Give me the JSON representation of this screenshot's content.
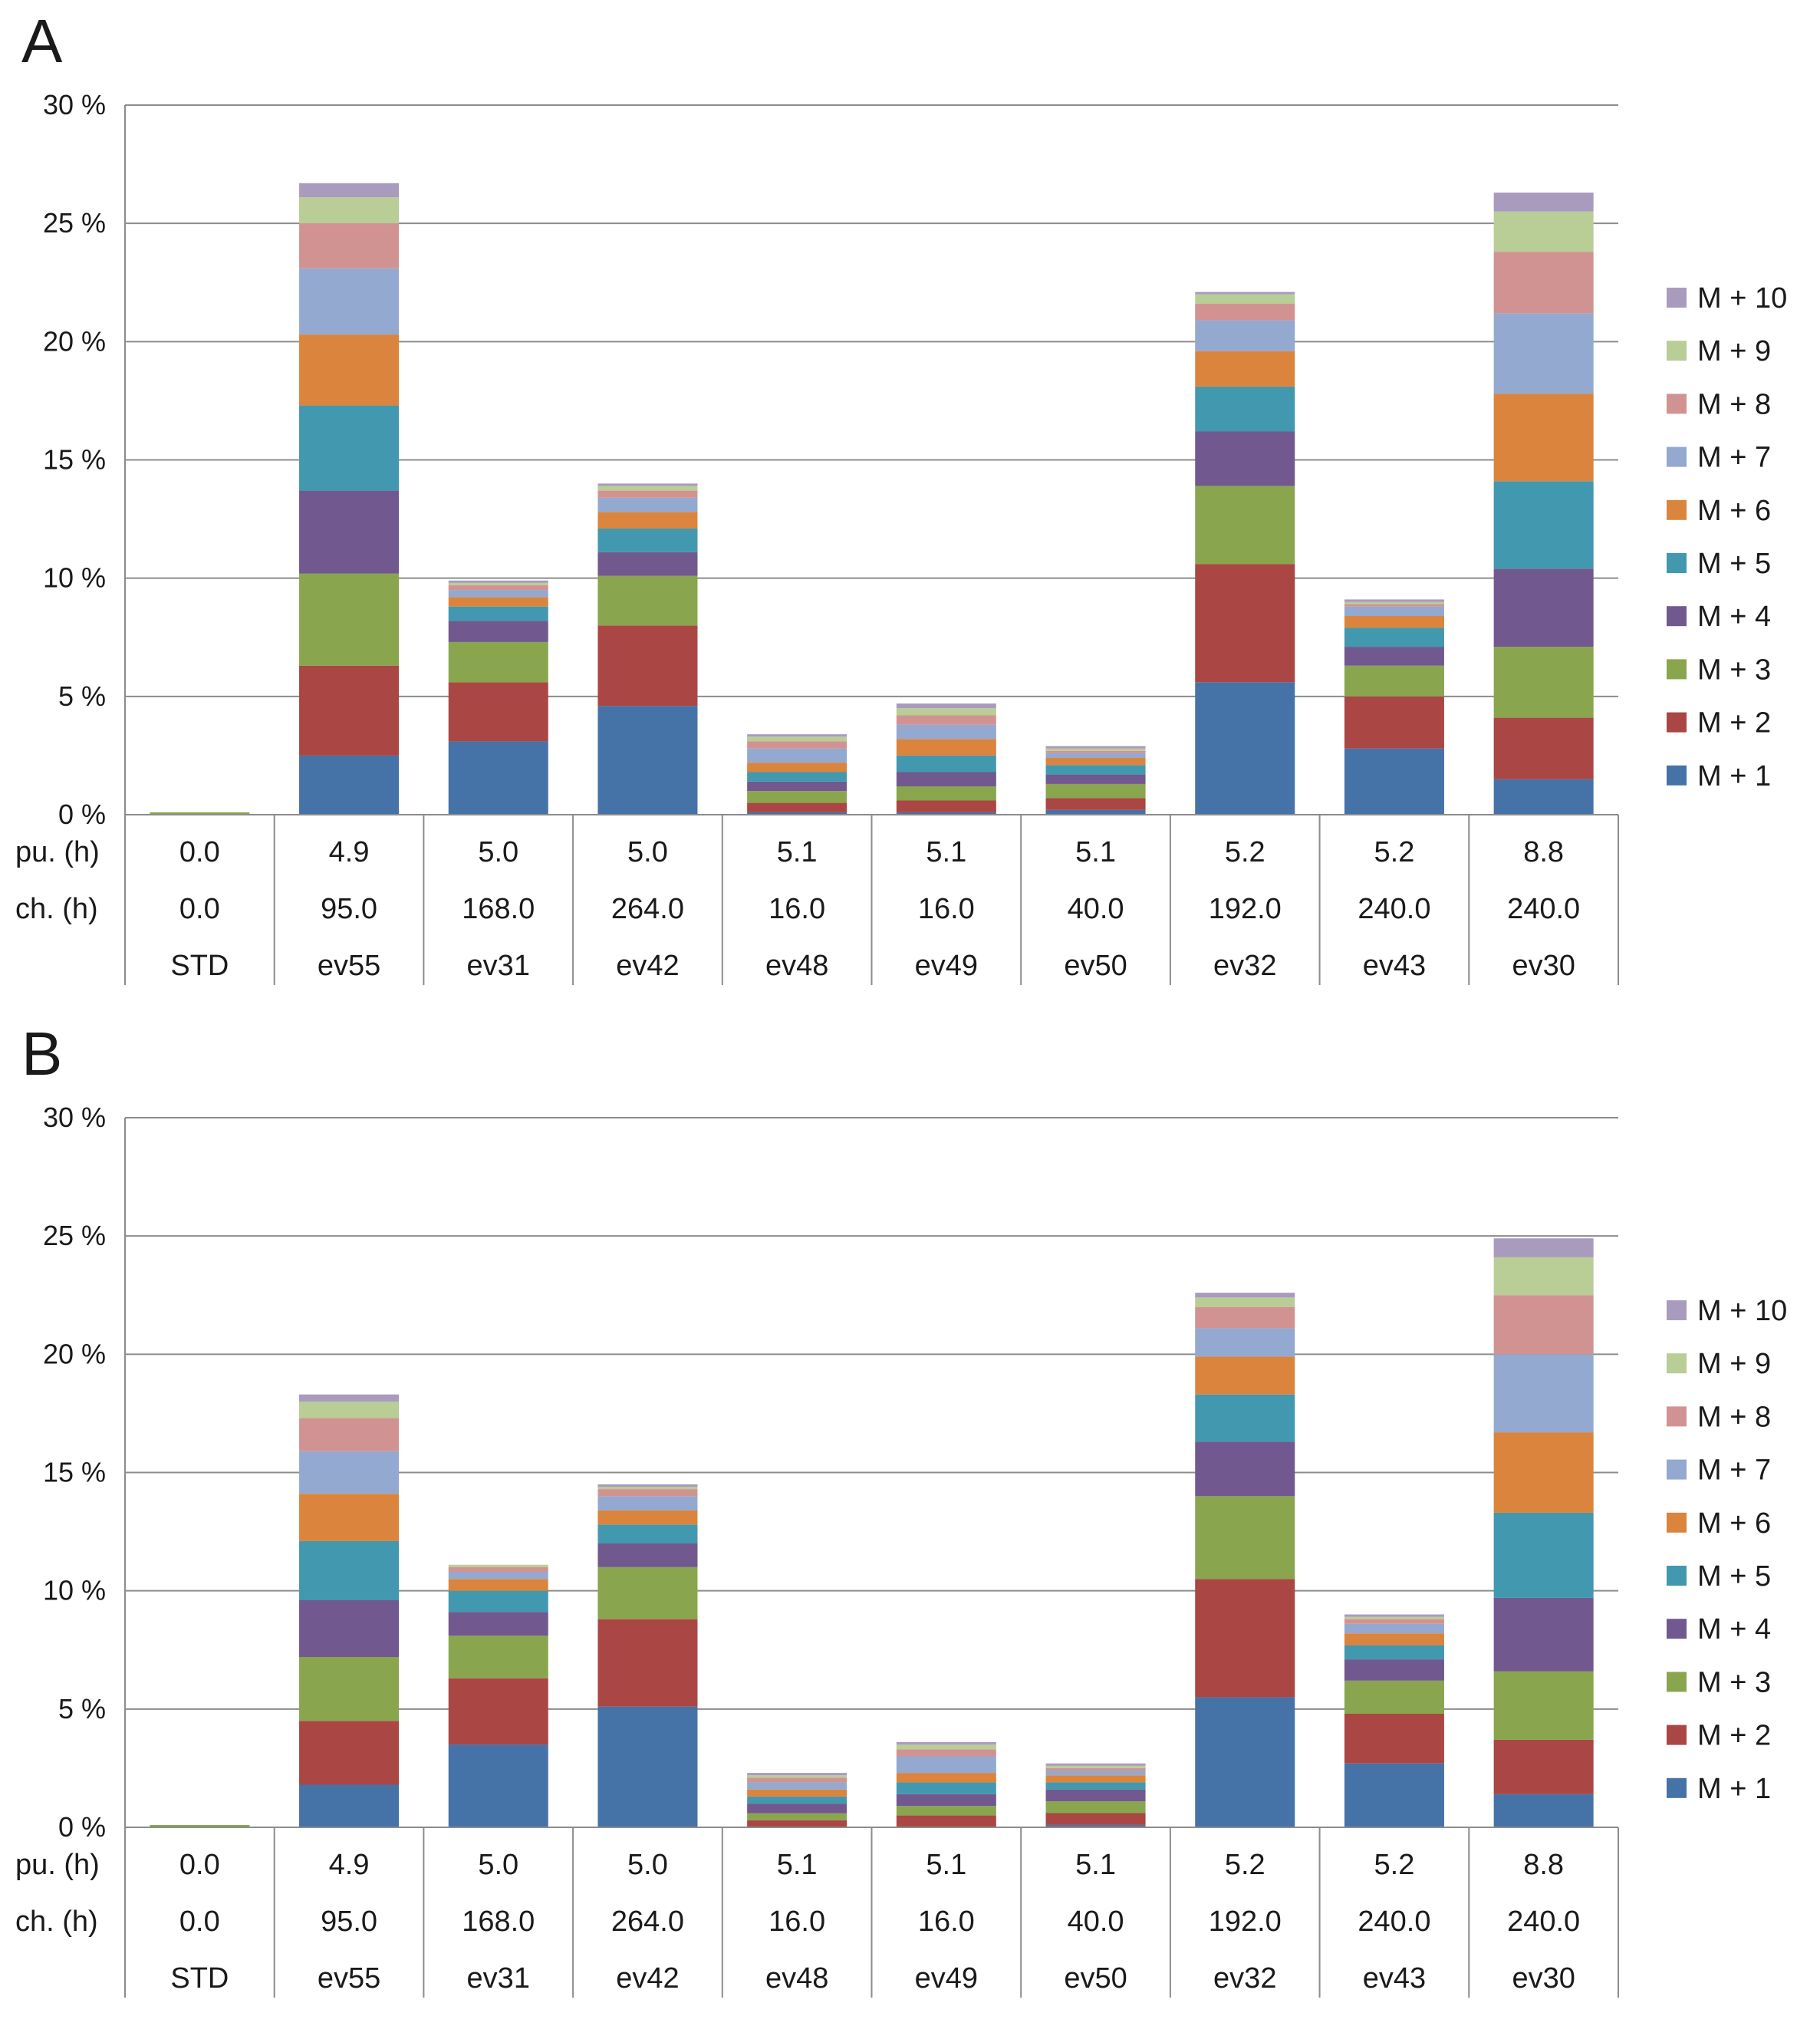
{
  "colors": {
    "M + 1": "#4572a7",
    "M + 2": "#aa4643",
    "M + 3": "#89a54e",
    "M + 4": "#71588f",
    "M + 5": "#4198af",
    "M + 6": "#db843d",
    "M + 7": "#93a9cf",
    "M + 8": "#d19392",
    "M + 9": "#b9cd96",
    "M + 10": "#a99bbd"
  },
  "chart_data": [
    {
      "panel": "A",
      "type": "bar",
      "stacked": true,
      "ylim": [
        0,
        30
      ],
      "yticks": [
        "0 %",
        "5 %",
        "10 %",
        "15 %",
        "20 %",
        "25 %",
        "30 %"
      ],
      "table_rows": [
        {
          "label": "pu. (h)",
          "values": [
            "0.0",
            "4.9",
            "5.0",
            "5.0",
            "5.1",
            "5.1",
            "5.1",
            "5.2",
            "5.2",
            "8.8"
          ]
        },
        {
          "label": "ch. (h)",
          "values": [
            "0.0",
            "95.0",
            "168.0",
            "264.0",
            "16.0",
            "16.0",
            "40.0",
            "192.0",
            "240.0",
            "240.0"
          ]
        },
        {
          "label": "",
          "values": [
            "STD",
            "ev55",
            "ev31",
            "ev42",
            "ev48",
            "ev49",
            "ev50",
            "ev32",
            "ev43",
            "ev30"
          ]
        }
      ],
      "categories": [
        "STD",
        "ev55",
        "ev31",
        "ev42",
        "ev48",
        "ev49",
        "ev50",
        "ev32",
        "ev43",
        "ev30"
      ],
      "legend": [
        "M + 10",
        "M + 9",
        "M + 8",
        "M + 7",
        "M + 6",
        "M + 5",
        "M + 4",
        "M + 3",
        "M + 2",
        "M + 1"
      ],
      "series": [
        {
          "name": "M + 1",
          "values": [
            0.0,
            2.5,
            3.1,
            4.6,
            0.1,
            0.1,
            0.2,
            5.6,
            2.8,
            1.5
          ]
        },
        {
          "name": "M + 2",
          "values": [
            0.0,
            3.8,
            2.5,
            3.4,
            0.4,
            0.5,
            0.5,
            5.0,
            2.2,
            2.6
          ]
        },
        {
          "name": "M + 3",
          "values": [
            0.1,
            3.9,
            1.7,
            2.1,
            0.5,
            0.6,
            0.6,
            3.3,
            1.3,
            3.0
          ]
        },
        {
          "name": "M + 4",
          "values": [
            0.0,
            3.5,
            0.9,
            1.0,
            0.4,
            0.6,
            0.4,
            2.3,
            0.8,
            3.3
          ]
        },
        {
          "name": "M + 5",
          "values": [
            0.0,
            3.6,
            0.6,
            1.0,
            0.4,
            0.7,
            0.4,
            1.9,
            0.8,
            3.7
          ]
        },
        {
          "name": "M + 6",
          "values": [
            0.0,
            3.0,
            0.4,
            0.7,
            0.4,
            0.7,
            0.3,
            1.5,
            0.5,
            3.7
          ]
        },
        {
          "name": "M + 7",
          "values": [
            0.0,
            2.8,
            0.3,
            0.6,
            0.6,
            0.6,
            0.2,
            1.3,
            0.4,
            3.4
          ]
        },
        {
          "name": "M + 8",
          "values": [
            0.0,
            1.9,
            0.2,
            0.3,
            0.3,
            0.4,
            0.1,
            0.7,
            0.1,
            2.6
          ]
        },
        {
          "name": "M + 9",
          "values": [
            0.0,
            1.1,
            0.1,
            0.2,
            0.2,
            0.3,
            0.1,
            0.4,
            0.1,
            1.7
          ]
        },
        {
          "name": "M + 10",
          "values": [
            0.0,
            0.6,
            0.1,
            0.1,
            0.1,
            0.2,
            0.1,
            0.1,
            0.1,
            0.8
          ]
        }
      ]
    },
    {
      "panel": "B",
      "type": "bar",
      "stacked": true,
      "ylim": [
        0,
        30
      ],
      "yticks": [
        "0 %",
        "5 %",
        "10 %",
        "15 %",
        "20 %",
        "25 %",
        "30 %"
      ],
      "table_rows": [
        {
          "label": "pu. (h)",
          "values": [
            "0.0",
            "4.9",
            "5.0",
            "5.0",
            "5.1",
            "5.1",
            "5.1",
            "5.2",
            "5.2",
            "8.8"
          ]
        },
        {
          "label": "ch. (h)",
          "values": [
            "0.0",
            "95.0",
            "168.0",
            "264.0",
            "16.0",
            "16.0",
            "40.0",
            "192.0",
            "240.0",
            "240.0"
          ]
        },
        {
          "label": "",
          "values": [
            "STD",
            "ev55",
            "ev31",
            "ev42",
            "ev48",
            "ev49",
            "ev50",
            "ev32",
            "ev43",
            "ev30"
          ]
        }
      ],
      "categories": [
        "STD",
        "ev55",
        "ev31",
        "ev42",
        "ev48",
        "ev49",
        "ev50",
        "ev32",
        "ev43",
        "ev30"
      ],
      "legend": [
        "M + 10",
        "M + 9",
        "M + 8",
        "M + 7",
        "M + 6",
        "M + 5",
        "M + 4",
        "M + 3",
        "M + 2",
        "M + 1"
      ],
      "series": [
        {
          "name": "M + 1",
          "values": [
            0.0,
            1.8,
            3.5,
            5.1,
            0.0,
            0.0,
            0.1,
            5.5,
            2.7,
            1.4
          ]
        },
        {
          "name": "M + 2",
          "values": [
            0.0,
            2.7,
            2.8,
            3.7,
            0.3,
            0.5,
            0.5,
            5.0,
            2.1,
            2.3
          ]
        },
        {
          "name": "M + 3",
          "values": [
            0.1,
            2.7,
            1.8,
            2.2,
            0.3,
            0.4,
            0.5,
            3.5,
            1.4,
            2.9
          ]
        },
        {
          "name": "M + 4",
          "values": [
            0.0,
            2.4,
            1.0,
            1.0,
            0.4,
            0.5,
            0.5,
            2.3,
            0.9,
            3.1
          ]
        },
        {
          "name": "M + 5",
          "values": [
            0.0,
            2.5,
            0.9,
            0.8,
            0.3,
            0.5,
            0.3,
            2.0,
            0.6,
            3.6
          ]
        },
        {
          "name": "M + 6",
          "values": [
            0.0,
            2.0,
            0.5,
            0.6,
            0.3,
            0.4,
            0.3,
            1.6,
            0.5,
            3.4
          ]
        },
        {
          "name": "M + 7",
          "values": [
            0.0,
            1.8,
            0.3,
            0.6,
            0.3,
            0.7,
            0.2,
            1.2,
            0.4,
            3.3
          ]
        },
        {
          "name": "M + 8",
          "values": [
            0.0,
            1.4,
            0.2,
            0.3,
            0.2,
            0.3,
            0.1,
            0.9,
            0.2,
            2.5
          ]
        },
        {
          "name": "M + 9",
          "values": [
            0.0,
            0.7,
            0.1,
            0.1,
            0.1,
            0.2,
            0.1,
            0.4,
            0.1,
            1.6
          ]
        },
        {
          "name": "M + 10",
          "values": [
            0.0,
            0.3,
            0.0,
            0.1,
            0.1,
            0.1,
            0.1,
            0.2,
            0.1,
            0.8
          ]
        }
      ]
    }
  ]
}
